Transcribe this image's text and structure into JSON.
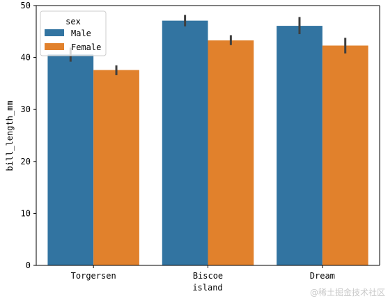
{
  "chart_data": {
    "type": "bar",
    "xlabel": "island",
    "ylabel": "bill_length_mm",
    "categories": [
      "Torgersen",
      "Biscoe",
      "Dream"
    ],
    "ylim": [
      0,
      50
    ],
    "yticks": [
      0,
      10,
      20,
      30,
      40,
      50
    ],
    "grid": false,
    "legend": {
      "title": "sex",
      "placement": "top-left"
    },
    "series": [
      {
        "name": "Male",
        "color": "#3274a1",
        "values": [
          40.6,
          47.1,
          46.1
        ],
        "ci_low": [
          39.2,
          46.0,
          44.5
        ],
        "ci_high": [
          41.9,
          48.2,
          47.8
        ]
      },
      {
        "name": "Female",
        "color": "#e1812c",
        "values": [
          37.6,
          43.3,
          42.3
        ],
        "ci_low": [
          36.6,
          42.4,
          40.8
        ],
        "ci_high": [
          38.5,
          44.3,
          43.8
        ]
      }
    ],
    "errorbar_color": "#3f3f3f",
    "watermark": "@稀土掘金技术社区"
  }
}
